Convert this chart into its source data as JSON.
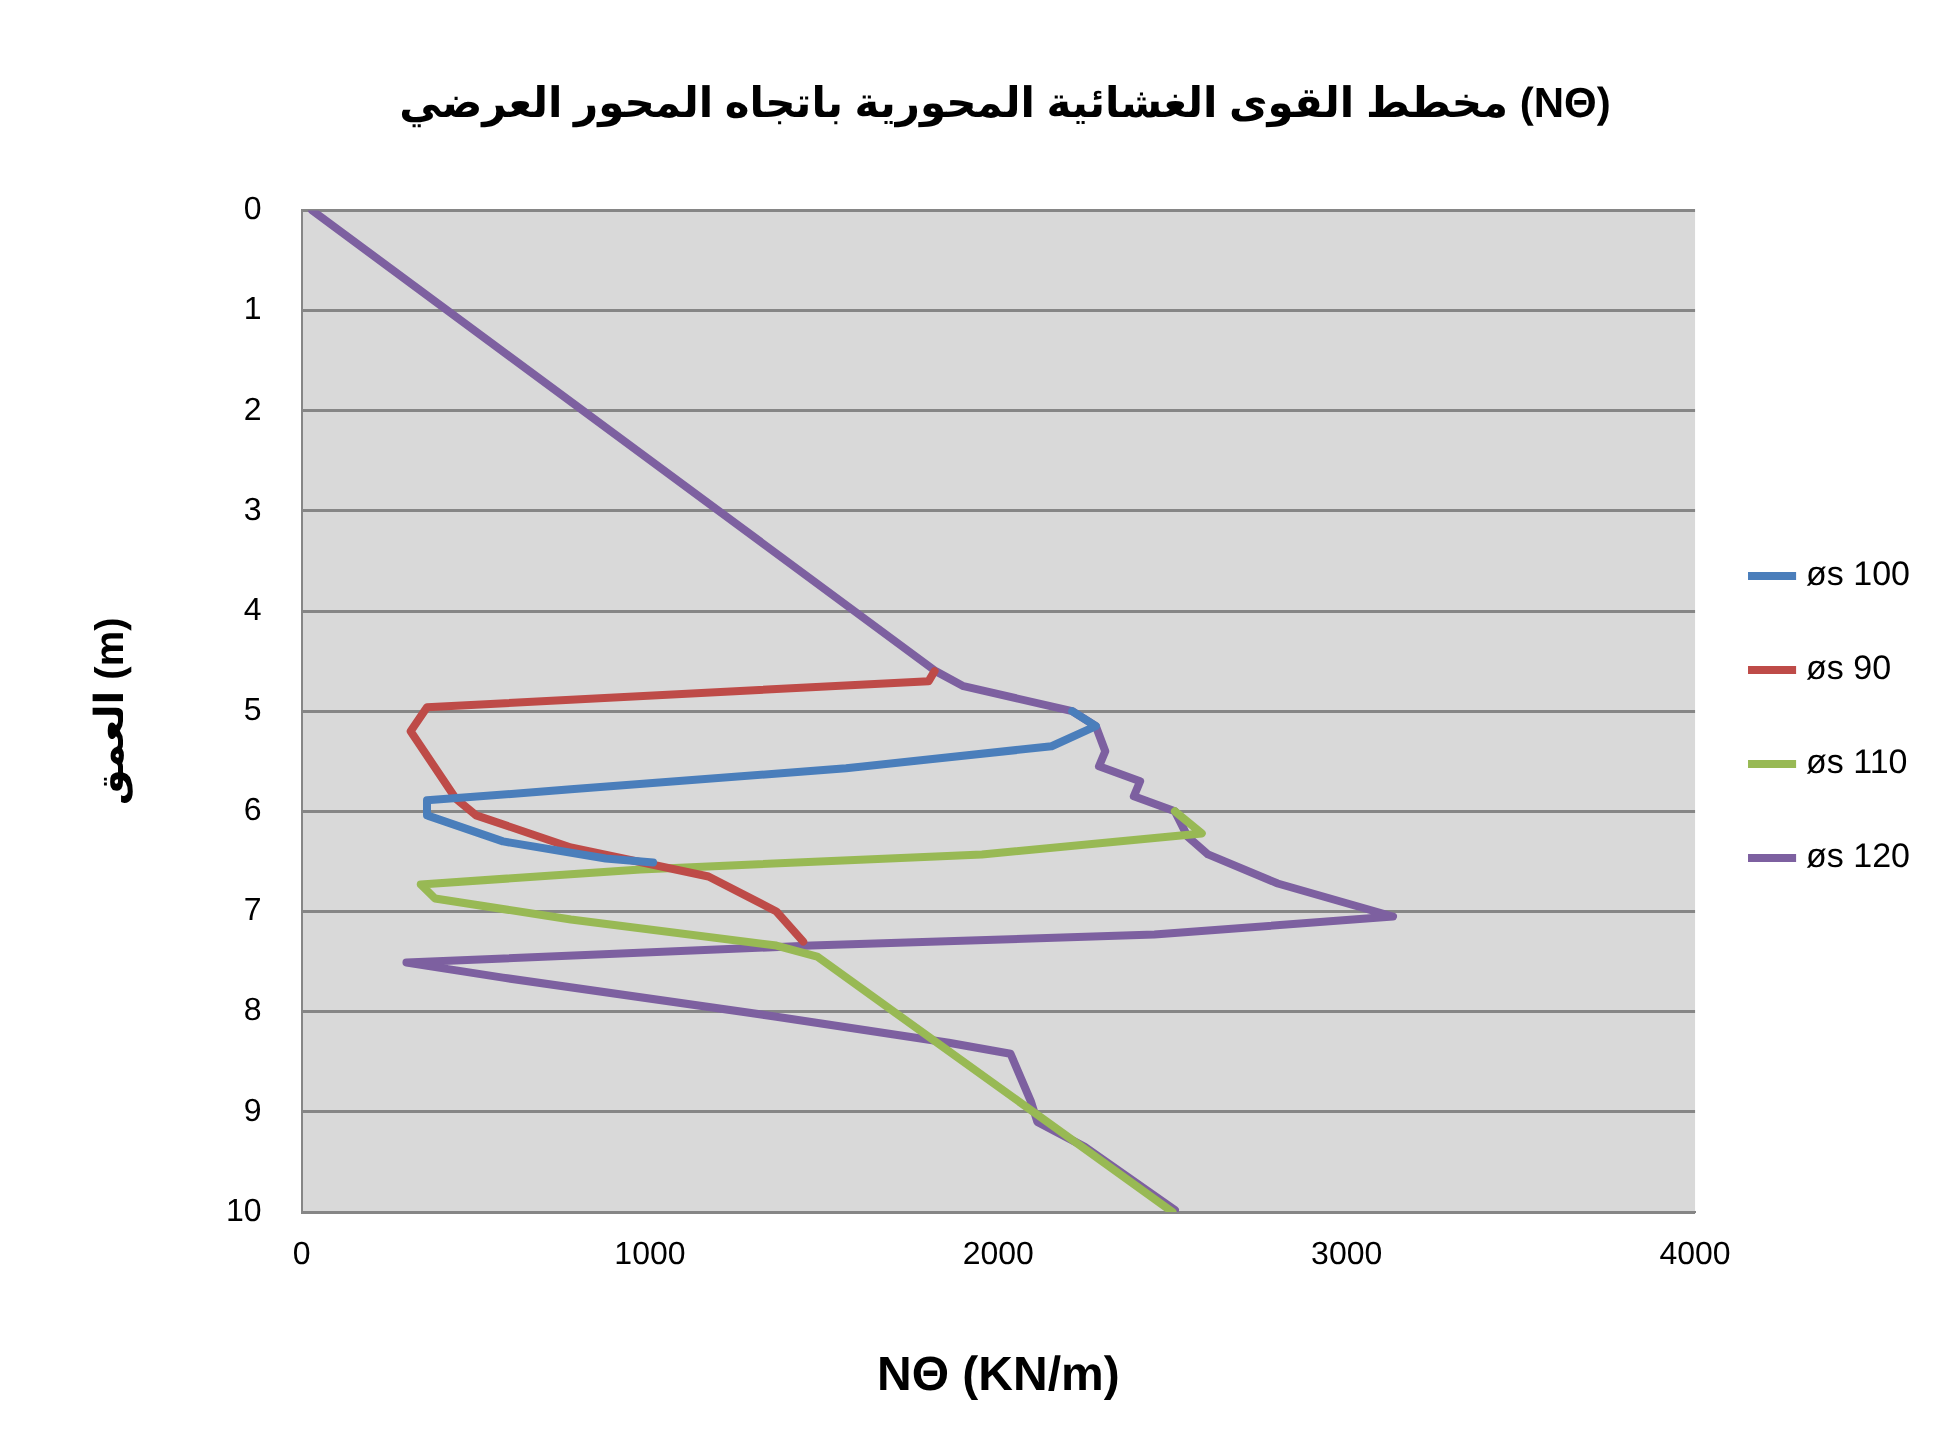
{
  "chart_data": {
    "type": "line",
    "title": "مخطط القوى الغشائية المحورية باتجاه المحور العرضي (NΘ)",
    "xlabel": "NΘ (KN/m)",
    "ylabel": "العمق (m)",
    "xlim": [
      0,
      4000
    ],
    "xticks": [
      0,
      1000,
      2000,
      3000,
      4000
    ],
    "ylim": [
      10,
      0
    ],
    "yticks": [
      0,
      1,
      2,
      3,
      4,
      5,
      6,
      7,
      8,
      9,
      10
    ],
    "grid": "y",
    "legend": "right",
    "marker": "none",
    "series": [
      {
        "name": "øs 100",
        "color": "#4a7ebb",
        "x": [
          2212,
          2280,
          2153,
          1563,
          773,
          360,
          360,
          578,
          873,
          1009
        ],
        "values": [
          5.0,
          5.15,
          5.35,
          5.57,
          5.78,
          5.89,
          6.04,
          6.3,
          6.47,
          6.51
        ]
      },
      {
        "name": "øs 90",
        "color": "#be4b48",
        "x": [
          1817,
          1800,
          360,
          313,
          442,
          501,
          773,
          1168,
          1363,
          1440
        ],
        "values": [
          4.6,
          4.7,
          4.96,
          5.2,
          5.87,
          6.04,
          6.36,
          6.65,
          7.0,
          7.3
        ]
      },
      {
        "name": "øs 110",
        "color": "#98b954",
        "x": [
          2507,
          2584,
          1953,
          973,
          342,
          383,
          773,
          1363,
          1480,
          2100,
          2500
        ],
        "values": [
          6.0,
          6.22,
          6.43,
          6.58,
          6.73,
          6.87,
          7.08,
          7.34,
          7.45,
          9.0,
          10
        ]
      },
      {
        "name": "øs 120",
        "color": "#7d60a0",
        "x": [
          30,
          1820,
          1900,
          2212,
          2280,
          2307,
          2289,
          2407,
          2389,
          2507,
          2543,
          2602,
          2802,
          3133,
          2448,
          1463,
          301,
          578,
          1363,
          1858,
          2035,
          2094,
          2112,
          2248,
          2507
        ],
        "values": [
          0,
          4.6,
          4.75,
          5.0,
          5.15,
          5.4,
          5.55,
          5.7,
          5.85,
          6.0,
          6.25,
          6.43,
          6.72,
          7.05,
          7.23,
          7.34,
          7.51,
          7.66,
          8.05,
          8.31,
          8.42,
          8.9,
          9.1,
          9.35,
          9.98
        ]
      }
    ]
  }
}
